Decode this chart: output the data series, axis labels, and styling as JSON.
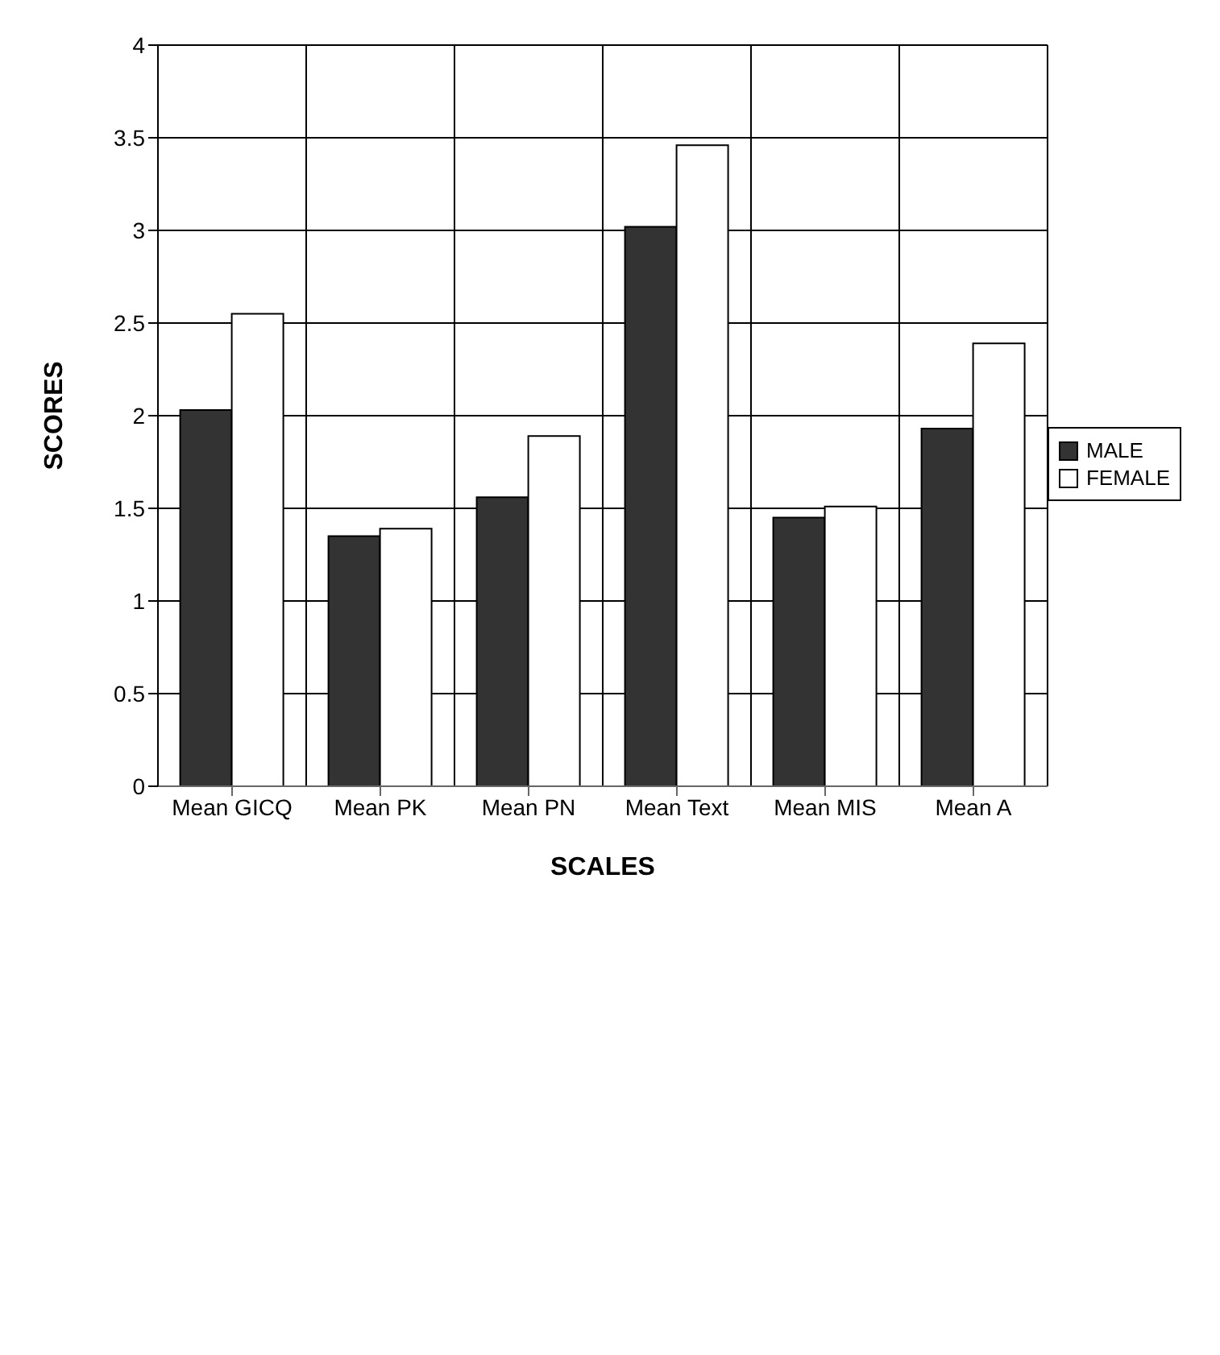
{
  "chart_data": {
    "type": "bar",
    "xlabel": "SCALES",
    "ylabel": "SCORES",
    "categories": [
      "Mean GICQ",
      "Mean PK",
      "Mean PN",
      "Mean Text",
      "Mean MIS",
      "Mean A"
    ],
    "series": [
      {
        "name": "MALE",
        "color": "#333333",
        "values": [
          2.03,
          1.35,
          1.56,
          3.02,
          1.45,
          1.93
        ]
      },
      {
        "name": "FEMALE",
        "color": "#ffffff",
        "values": [
          2.55,
          1.39,
          1.89,
          3.46,
          1.51,
          2.39
        ]
      }
    ],
    "ylim": [
      0,
      4
    ],
    "yticks": [
      0,
      0.5,
      1,
      1.5,
      2,
      2.5,
      3,
      3.5,
      4
    ],
    "grid": true,
    "legend": "right"
  }
}
